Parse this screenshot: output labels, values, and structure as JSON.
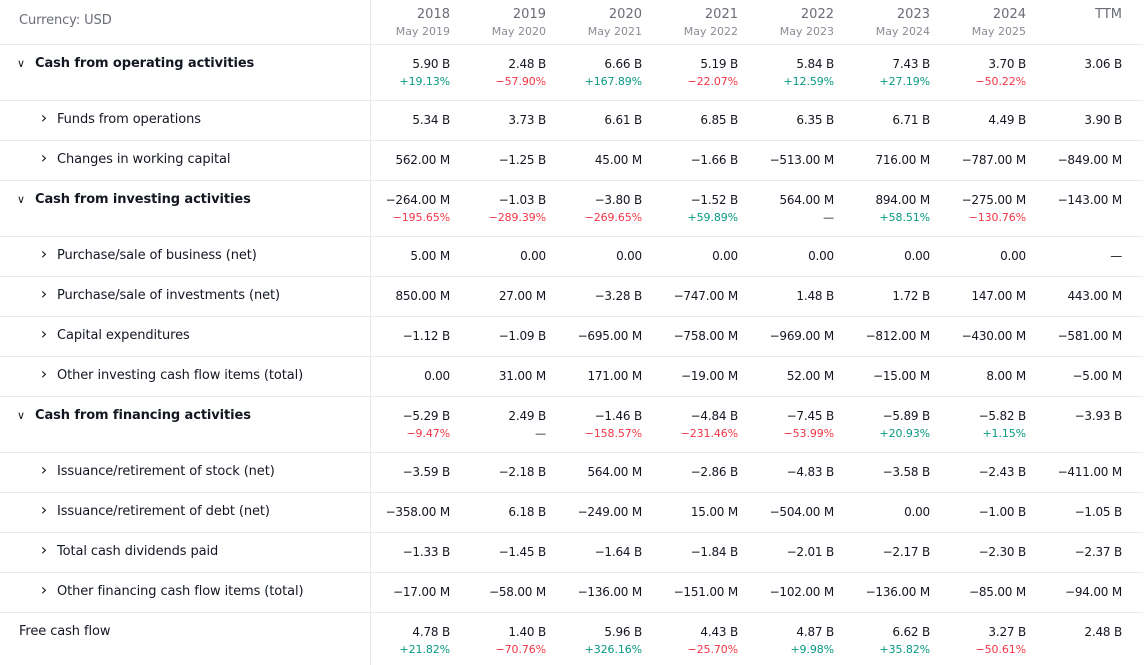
{
  "currency_label": "Currency: USD",
  "columns": [
    {
      "year": "2018",
      "period": "May 2019"
    },
    {
      "year": "2019",
      "period": "May 2020"
    },
    {
      "year": "2020",
      "period": "May 2021"
    },
    {
      "year": "2021",
      "period": "May 2022"
    },
    {
      "year": "2022",
      "period": "May 2023"
    },
    {
      "year": "2023",
      "period": "May 2024"
    },
    {
      "year": "2024",
      "period": "May 2025"
    },
    {
      "year": "TTM",
      "period": ""
    }
  ],
  "colors": {
    "positive": "#089981",
    "negative": "#f23645",
    "text": "#131722",
    "muted": "#6a6d78",
    "divider": "#e7e9ee"
  },
  "rows": [
    {
      "kind": "section",
      "name": "cash-from-operating-activities",
      "label": "Cash from operating activities",
      "icon": "chevron-down-icon",
      "values": [
        "5.90 B",
        "2.48 B",
        "6.66 B",
        "5.19 B",
        "5.84 B",
        "7.43 B",
        "3.70 B",
        "3.06 B"
      ],
      "changes": [
        {
          "text": "+19.13%",
          "sign": "pos"
        },
        {
          "text": "−57.90%",
          "sign": "neg"
        },
        {
          "text": "+167.89%",
          "sign": "pos"
        },
        {
          "text": "−22.07%",
          "sign": "neg"
        },
        {
          "text": "+12.59%",
          "sign": "pos"
        },
        {
          "text": "+27.19%",
          "sign": "pos"
        },
        {
          "text": "−50.22%",
          "sign": "neg"
        },
        {
          "text": "",
          "sign": "neu"
        }
      ]
    },
    {
      "kind": "sub",
      "name": "funds-from-operations",
      "label": "Funds from operations",
      "icon": "chevron-right-icon",
      "values": [
        "5.34 B",
        "3.73 B",
        "6.61 B",
        "6.85 B",
        "6.35 B",
        "6.71 B",
        "4.49 B",
        "3.90 B"
      ]
    },
    {
      "kind": "sub",
      "name": "changes-in-working-capital",
      "label": "Changes in working capital",
      "icon": "chevron-right-icon",
      "values": [
        "562.00 M",
        "−1.25 B",
        "45.00 M",
        "−1.66 B",
        "−513.00 M",
        "716.00 M",
        "−787.00 M",
        "−849.00 M"
      ]
    },
    {
      "kind": "section",
      "name": "cash-from-investing-activities",
      "label": "Cash from investing activities",
      "icon": "chevron-down-icon",
      "values": [
        "−264.00 M",
        "−1.03 B",
        "−3.80 B",
        "−1.52 B",
        "564.00 M",
        "894.00 M",
        "−275.00 M",
        "−143.00 M"
      ],
      "changes": [
        {
          "text": "−195.65%",
          "sign": "neg"
        },
        {
          "text": "−289.39%",
          "sign": "neg"
        },
        {
          "text": "−269.65%",
          "sign": "neg"
        },
        {
          "text": "+59.89%",
          "sign": "pos"
        },
        {
          "text": "—",
          "sign": "neu"
        },
        {
          "text": "+58.51%",
          "sign": "pos"
        },
        {
          "text": "−130.76%",
          "sign": "neg"
        },
        {
          "text": "",
          "sign": "neu"
        }
      ]
    },
    {
      "kind": "sub",
      "name": "purchase-sale-of-business",
      "label": "Purchase/sale of business (net)",
      "icon": "chevron-right-icon",
      "values": [
        "5.00 M",
        "0.00",
        "0.00",
        "0.00",
        "0.00",
        "0.00",
        "0.00",
        "—"
      ]
    },
    {
      "kind": "sub",
      "name": "purchase-sale-of-investments",
      "label": "Purchase/sale of investments (net)",
      "icon": "chevron-right-icon",
      "values": [
        "850.00 M",
        "27.00 M",
        "−3.28 B",
        "−747.00 M",
        "1.48 B",
        "1.72 B",
        "147.00 M",
        "443.00 M"
      ]
    },
    {
      "kind": "sub",
      "name": "capital-expenditures",
      "label": "Capital expenditures",
      "icon": "chevron-right-icon",
      "values": [
        "−1.12 B",
        "−1.09 B",
        "−695.00 M",
        "−758.00 M",
        "−969.00 M",
        "−812.00 M",
        "−430.00 M",
        "−581.00 M"
      ]
    },
    {
      "kind": "sub",
      "name": "other-investing-cash-flow-items",
      "label": "Other investing cash flow items (total)",
      "icon": "chevron-right-icon",
      "values": [
        "0.00",
        "31.00 M",
        "171.00 M",
        "−19.00 M",
        "52.00 M",
        "−15.00 M",
        "8.00 M",
        "−5.00 M"
      ]
    },
    {
      "kind": "section",
      "name": "cash-from-financing-activities",
      "label": "Cash from financing activities",
      "icon": "chevron-down-icon",
      "values": [
        "−5.29 B",
        "2.49 B",
        "−1.46 B",
        "−4.84 B",
        "−7.45 B",
        "−5.89 B",
        "−5.82 B",
        "−3.93 B"
      ],
      "changes": [
        {
          "text": "−9.47%",
          "sign": "neg"
        },
        {
          "text": "—",
          "sign": "neu"
        },
        {
          "text": "−158.57%",
          "sign": "neg"
        },
        {
          "text": "−231.46%",
          "sign": "neg"
        },
        {
          "text": "−53.99%",
          "sign": "neg"
        },
        {
          "text": "+20.93%",
          "sign": "pos"
        },
        {
          "text": "+1.15%",
          "sign": "pos"
        },
        {
          "text": "",
          "sign": "neu"
        }
      ]
    },
    {
      "kind": "sub",
      "name": "issuance-retirement-of-stock",
      "label": "Issuance/retirement of stock (net)",
      "icon": "chevron-right-icon",
      "values": [
        "−3.59 B",
        "−2.18 B",
        "564.00 M",
        "−2.86 B",
        "−4.83 B",
        "−3.58 B",
        "−2.43 B",
        "−411.00 M"
      ]
    },
    {
      "kind": "sub",
      "name": "issuance-retirement-of-debt",
      "label": "Issuance/retirement of debt (net)",
      "icon": "chevron-right-icon",
      "values": [
        "−358.00 M",
        "6.18 B",
        "−249.00 M",
        "15.00 M",
        "−504.00 M",
        "0.00",
        "−1.00 B",
        "−1.05 B"
      ]
    },
    {
      "kind": "sub",
      "name": "total-cash-dividends-paid",
      "label": "Total cash dividends paid",
      "icon": "chevron-right-icon",
      "values": [
        "−1.33 B",
        "−1.45 B",
        "−1.64 B",
        "−1.84 B",
        "−2.01 B",
        "−2.17 B",
        "−2.30 B",
        "−2.37 B"
      ]
    },
    {
      "kind": "sub",
      "name": "other-financing-cash-flow-items",
      "label": "Other financing cash flow items (total)",
      "icon": "chevron-right-icon",
      "values": [
        "−17.00 M",
        "−58.00 M",
        "−136.00 M",
        "−151.00 M",
        "−102.00 M",
        "−136.00 M",
        "−85.00 M",
        "−94.00 M"
      ]
    },
    {
      "kind": "fcf",
      "name": "free-cash-flow",
      "label": "Free cash flow",
      "icon": "",
      "values": [
        "4.78 B",
        "1.40 B",
        "5.96 B",
        "4.43 B",
        "4.87 B",
        "6.62 B",
        "3.27 B",
        "2.48 B"
      ],
      "changes": [
        {
          "text": "+21.82%",
          "sign": "pos"
        },
        {
          "text": "−70.76%",
          "sign": "neg"
        },
        {
          "text": "+326.16%",
          "sign": "pos"
        },
        {
          "text": "−25.70%",
          "sign": "neg"
        },
        {
          "text": "+9.98%",
          "sign": "pos"
        },
        {
          "text": "+35.82%",
          "sign": "pos"
        },
        {
          "text": "−50.61%",
          "sign": "neg"
        },
        {
          "text": "",
          "sign": "neu"
        }
      ]
    }
  ]
}
